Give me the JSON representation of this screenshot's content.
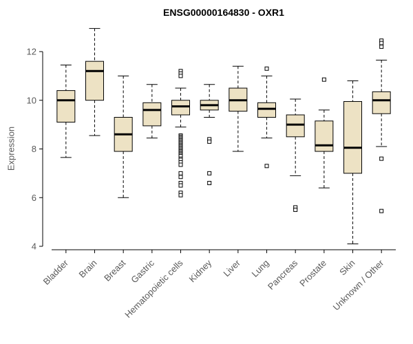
{
  "page": {
    "background": "#ffffff"
  },
  "chart_data": {
    "type": "boxplot",
    "title": "ENSG00000164830 - OXR1",
    "ylabel": "Expression",
    "ylim": [
      4,
      13.2
    ],
    "yticks": [
      4,
      6,
      8,
      10,
      12
    ],
    "box_fill": "#EDE2C4",
    "outlier_fill": "#ffffff",
    "axis_line_color": "#000000",
    "axis_label_color": "#595959",
    "grid": "off",
    "legend": "none",
    "categories": [
      "Bladder",
      "Brain",
      "Breast",
      "Gastric",
      "Hematopoietic cells",
      "Kidney",
      "Liver",
      "Lung",
      "Pancreas",
      "Prostate",
      "Skin",
      "Unknown / Other"
    ],
    "series": [
      {
        "label": "Bladder",
        "whislo": 7.65,
        "q1": 9.1,
        "med": 10.0,
        "q3": 10.4,
        "whishi": 11.45,
        "outliers": []
      },
      {
        "label": "Brain",
        "whislo": 8.55,
        "q1": 10.0,
        "med": 11.2,
        "q3": 11.6,
        "whishi": 12.95,
        "outliers": []
      },
      {
        "label": "Breast",
        "whislo": 6.0,
        "q1": 7.9,
        "med": 8.6,
        "q3": 9.3,
        "whishi": 11.0,
        "outliers": []
      },
      {
        "label": "Gastric",
        "whislo": 8.45,
        "q1": 8.95,
        "med": 9.6,
        "q3": 9.9,
        "whishi": 10.65,
        "outliers": []
      },
      {
        "label": "Hematopoietic cells",
        "whislo": 8.9,
        "q1": 9.4,
        "med": 9.75,
        "q3": 10.0,
        "whishi": 10.5,
        "outliers": [
          11.2,
          11.1,
          11.0,
          8.55,
          8.5,
          8.45,
          8.4,
          8.35,
          8.3,
          8.25,
          8.2,
          8.15,
          8.1,
          8.05,
          8.0,
          7.95,
          7.9,
          7.85,
          7.8,
          7.75,
          7.7,
          7.6,
          7.55,
          7.45,
          7.35,
          7.0,
          6.85,
          6.6,
          6.5,
          6.2,
          6.1
        ]
      },
      {
        "label": "Kidney",
        "whislo": 9.3,
        "q1": 9.6,
        "med": 9.8,
        "q3": 10.0,
        "whishi": 10.65,
        "outliers": [
          8.4,
          8.3,
          7.0,
          6.6
        ]
      },
      {
        "label": "Liver",
        "whislo": 7.9,
        "q1": 9.55,
        "med": 10.0,
        "q3": 10.5,
        "whishi": 11.4,
        "outliers": []
      },
      {
        "label": "Lung",
        "whislo": 8.45,
        "q1": 9.3,
        "med": 9.65,
        "q3": 9.9,
        "whishi": 11.0,
        "outliers": [
          11.3,
          7.3
        ]
      },
      {
        "label": "Pancreas",
        "whislo": 6.9,
        "q1": 8.5,
        "med": 9.0,
        "q3": 9.4,
        "whishi": 10.05,
        "outliers": [
          5.6,
          5.5
        ]
      },
      {
        "label": "Prostate",
        "whislo": 6.4,
        "q1": 7.9,
        "med": 8.15,
        "q3": 9.15,
        "whishi": 9.6,
        "outliers": [
          10.85
        ]
      },
      {
        "label": "Skin",
        "whislo": 4.1,
        "q1": 7.0,
        "med": 8.05,
        "q3": 9.95,
        "whishi": 10.8,
        "outliers": []
      },
      {
        "label": "Unknown / Other",
        "whislo": 8.1,
        "q1": 9.45,
        "med": 10.0,
        "q3": 10.35,
        "whishi": 11.65,
        "outliers": [
          12.45,
          12.35,
          12.2,
          7.6,
          5.45
        ]
      }
    ]
  }
}
